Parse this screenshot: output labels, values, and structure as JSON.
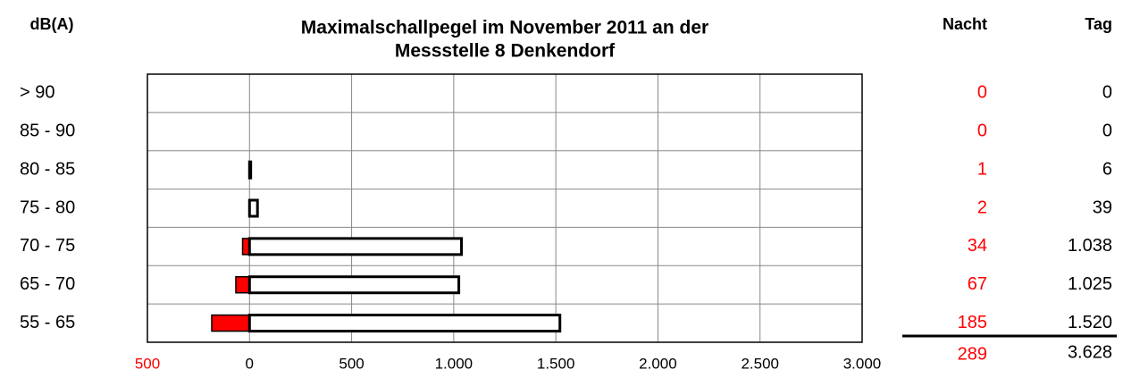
{
  "chart_data": {
    "type": "bar",
    "title": [
      "Maximalschallpegel im November 2011 an der",
      "Messstelle 8 Denkendorf"
    ],
    "unit_label": "dB(A)",
    "categories": [
      "> 90",
      "85 - 90",
      "80 - 85",
      "75 - 80",
      "70 - 75",
      "65 - 70",
      "55 - 65"
    ],
    "series": [
      {
        "name": "Nacht",
        "color": "#ff0000",
        "values": [
          0,
          0,
          1,
          2,
          34,
          67,
          185
        ],
        "total": 289
      },
      {
        "name": "Tag",
        "color": "#ffffff",
        "values": [
          0,
          0,
          6,
          39,
          1038,
          1025,
          1520
        ],
        "value_labels": [
          "0",
          "0",
          "6",
          "39",
          "1.038",
          "1.025",
          "1.520"
        ],
        "total": 3628,
        "total_label": "3.628"
      }
    ],
    "xlim": [
      -500,
      3000
    ],
    "xticks": [
      {
        "value": -500,
        "label": "500"
      },
      0,
      500,
      {
        "value": 1000,
        "label": "1.000"
      },
      {
        "value": 1500,
        "label": "1.500"
      },
      {
        "value": 2000,
        "label": "2.000"
      },
      {
        "value": 2500,
        "label": "2.500"
      },
      {
        "value": 3000,
        "label": "3.000"
      }
    ],
    "grid": true
  }
}
